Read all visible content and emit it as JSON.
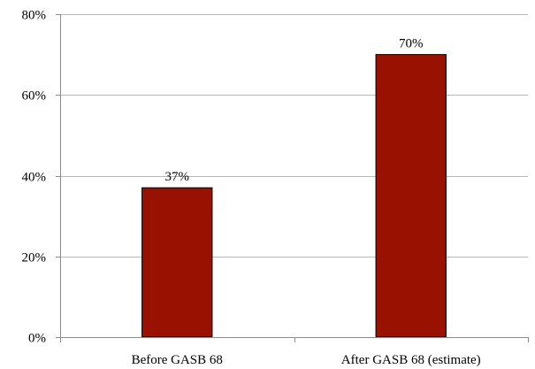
{
  "chart_data": {
    "type": "bar",
    "categories": [
      "Before GASB 68",
      "After GASB 68 (estimate)"
    ],
    "values": [
      37,
      70
    ],
    "value_labels": [
      "37%",
      "70%"
    ],
    "title": "",
    "xlabel": "",
    "ylabel": "",
    "ylim": [
      0,
      80
    ],
    "y_ticks": [
      0,
      20,
      40,
      60,
      80
    ],
    "y_tick_labels": [
      "0%",
      "20%",
      "40%",
      "60%",
      "80%"
    ],
    "grid": true,
    "legend": "none",
    "bar_color": "#991100"
  }
}
